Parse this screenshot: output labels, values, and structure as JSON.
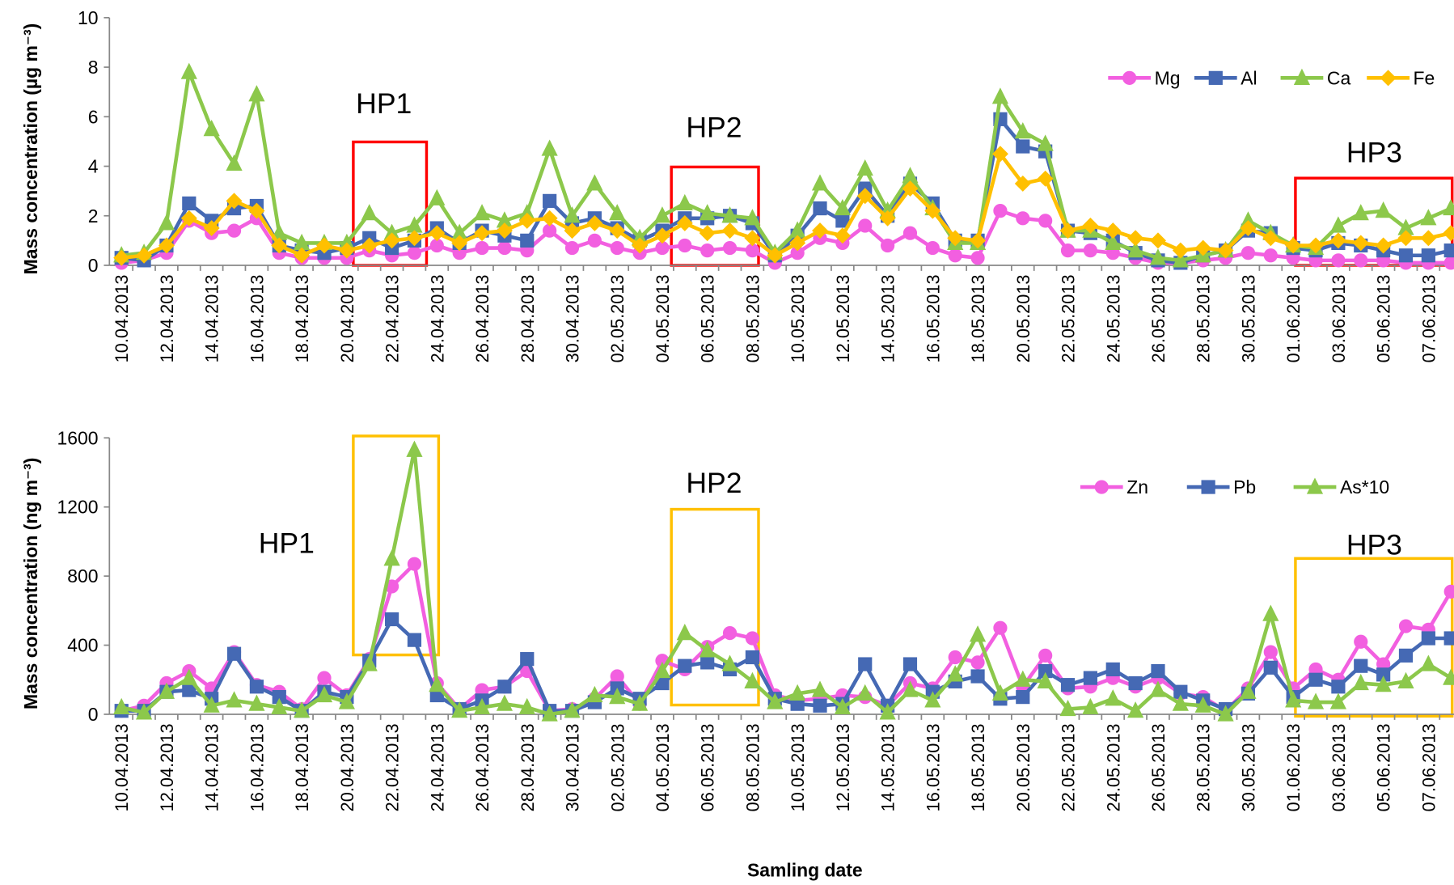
{
  "chart_data": [
    {
      "type": "line",
      "ylabel": "Mass concentration (µg m⁻³)",
      "annotations": [
        "HP1",
        "HP2",
        "HP3"
      ],
      "categories": [
        "10.04.2013",
        null,
        "12.04.2013",
        null,
        "14.04.2013",
        null,
        "16.04.2013",
        null,
        "18.04.2013",
        null,
        "20.04.2013",
        null,
        "22.04.2013",
        null,
        "24.04.2013",
        null,
        "26.04.2013",
        null,
        "28.04.2013",
        null,
        "30.04.2013",
        null,
        "02.05.2013",
        null,
        "04.05.2013",
        null,
        "06.05.2013",
        null,
        "08.05.2013",
        null,
        "10.05.2013",
        null,
        "12.05.2013",
        null,
        "14.05.2013",
        null,
        "16.05.2013",
        null,
        "18.05.2013",
        null,
        "20.05.2013",
        null,
        "22.05.2013",
        null,
        "24.05.2013",
        null,
        "26.05.2013",
        null,
        "28.05.2013",
        null,
        "30.05.2013",
        null,
        "01.06.2013",
        null,
        "03.06.2013",
        null,
        "05.06.2013",
        null,
        "07.06.2013",
        null
      ],
      "ylim": [
        0,
        10
      ],
      "yticks": [
        0,
        2,
        4,
        6,
        8,
        10
      ],
      "series": [
        {
          "name": "Mg",
          "color": "#f25fe0",
          "marker": "circle",
          "values": [
            0.1,
            0.2,
            0.5,
            1.8,
            1.3,
            1.4,
            1.9,
            0.5,
            0.3,
            0.3,
            0.3,
            0.6,
            0.4,
            0.5,
            0.8,
            0.5,
            0.7,
            0.7,
            0.6,
            1.4,
            0.7,
            1.0,
            0.7,
            0.5,
            0.7,
            0.8,
            0.6,
            0.7,
            0.6,
            0.1,
            0.5,
            1.1,
            0.9,
            1.6,
            0.8,
            1.3,
            0.7,
            0.4,
            0.3,
            2.2,
            1.9,
            1.8,
            0.6,
            0.6,
            0.5,
            0.3,
            0.1,
            0.1,
            0.2,
            0.3,
            0.5,
            0.4,
            0.3,
            0.2,
            0.2,
            0.2,
            0.2,
            0.1,
            0.1,
            0.1
          ]
        },
        {
          "name": "Al",
          "color": "#4569b4",
          "marker": "square",
          "values": [
            0.3,
            0.2,
            0.8,
            2.5,
            1.8,
            2.3,
            2.4,
            0.8,
            0.6,
            0.5,
            0.7,
            1.1,
            0.7,
            1.0,
            1.5,
            0.9,
            1.4,
            1.2,
            1.0,
            2.6,
            1.7,
            1.9,
            1.5,
            1.0,
            1.4,
            1.9,
            1.9,
            2.0,
            1.7,
            0.4,
            1.2,
            2.3,
            1.8,
            3.1,
            2.0,
            3.3,
            2.5,
            1.0,
            1.0,
            5.9,
            4.8,
            4.6,
            1.4,
            1.3,
            1.0,
            0.5,
            0.2,
            0.1,
            0.4,
            0.6,
            1.4,
            1.3,
            0.7,
            0.6,
            0.9,
            0.8,
            0.6,
            0.4,
            0.4,
            0.6
          ]
        },
        {
          "name": "Ca",
          "color": "#8cc84b",
          "marker": "triangle",
          "values": [
            0.4,
            0.5,
            1.7,
            7.8,
            5.5,
            4.1,
            6.9,
            1.3,
            0.9,
            0.9,
            0.9,
            2.1,
            1.3,
            1.6,
            2.7,
            1.3,
            2.1,
            1.8,
            2.1,
            4.7,
            2.0,
            3.3,
            2.1,
            1.1,
            2.0,
            2.5,
            2.1,
            2.0,
            1.9,
            0.5,
            1.4,
            3.3,
            2.3,
            3.9,
            2.2,
            3.6,
            2.3,
            0.9,
            0.9,
            6.8,
            5.4,
            4.9,
            1.4,
            1.4,
            0.9,
            0.6,
            0.3,
            0.2,
            0.4,
            0.6,
            1.8,
            1.3,
            0.8,
            0.7,
            1.6,
            2.1,
            2.2,
            1.5,
            1.9,
            2.3
          ]
        },
        {
          "name": "Fe",
          "color": "#ffc000",
          "marker": "diamond",
          "values": [
            0.3,
            0.4,
            0.8,
            1.9,
            1.5,
            2.6,
            2.2,
            0.8,
            0.4,
            0.8,
            0.6,
            0.8,
            1.0,
            1.1,
            1.3,
            0.9,
            1.3,
            1.4,
            1.8,
            1.9,
            1.4,
            1.7,
            1.4,
            0.8,
            1.2,
            1.7,
            1.3,
            1.4,
            1.1,
            0.4,
            0.9,
            1.4,
            1.2,
            2.8,
            1.9,
            3.1,
            2.2,
            1.1,
            1.0,
            4.5,
            3.3,
            3.5,
            1.4,
            1.6,
            1.4,
            1.1,
            1.0,
            0.6,
            0.7,
            0.6,
            1.5,
            1.1,
            0.8,
            0.8,
            1.0,
            0.9,
            0.8,
            1.1,
            1.1,
            1.3
          ]
        }
      ]
    },
    {
      "type": "line",
      "ylabel": "Mass concentration (ng m⁻³)",
      "xlabel": "Samling date",
      "annotations": [
        "HP1",
        "HP2",
        "HP3"
      ],
      "categories": [
        "10.04.2013",
        null,
        "12.04.2013",
        null,
        "14.04.2013",
        null,
        "16.04.2013",
        null,
        "18.04.2013",
        null,
        "20.04.2013",
        null,
        "22.04.2013",
        null,
        "24.04.2013",
        null,
        "26.04.2013",
        null,
        "28.04.2013",
        null,
        "30.04.2013",
        null,
        "02.05.2013",
        null,
        "04.05.2013",
        null,
        "06.05.2013",
        null,
        "08.05.2013",
        null,
        "10.05.2013",
        null,
        "12.05.2013",
        null,
        "14.05.2013",
        null,
        "16.05.2013",
        null,
        "18.05.2013",
        null,
        "20.05.2013",
        null,
        "22.05.2013",
        null,
        "24.05.2013",
        null,
        "26.05.2013",
        null,
        "28.05.2013",
        null,
        "30.05.2013",
        null,
        "01.06.2013",
        null,
        "03.06.2013",
        null,
        "05.06.2013",
        null,
        "07.06.2013",
        null
      ],
      "ylim": [
        0,
        1600
      ],
      "yticks": [
        0,
        400,
        800,
        1200,
        1600
      ],
      "series": [
        {
          "name": "Zn",
          "color": "#f25fe0",
          "marker": "circle",
          "values": [
            20,
            50,
            180,
            250,
            150,
            360,
            170,
            130,
            30,
            210,
            110,
            320,
            740,
            870,
            180,
            30,
            140,
            160,
            250,
            20,
            30,
            90,
            220,
            60,
            310,
            260,
            390,
            470,
            440,
            110,
            80,
            90,
            110,
            100,
            50,
            180,
            150,
            330,
            300,
            500,
            160,
            340,
            150,
            160,
            210,
            160,
            210,
            120,
            100,
            20,
            150,
            360,
            150,
            260,
            200,
            420,
            290,
            510,
            490,
            710
          ]
        },
        {
          "name": "Pb",
          "color": "#4569b4",
          "marker": "square",
          "values": [
            20,
            20,
            130,
            140,
            90,
            350,
            160,
            100,
            20,
            130,
            100,
            310,
            550,
            430,
            110,
            30,
            80,
            160,
            320,
            20,
            20,
            70,
            150,
            90,
            180,
            280,
            300,
            260,
            330,
            90,
            60,
            50,
            60,
            290,
            50,
            290,
            130,
            190,
            220,
            90,
            100,
            250,
            170,
            210,
            260,
            180,
            250,
            130,
            80,
            30,
            120,
            270,
            100,
            200,
            160,
            280,
            230,
            340,
            440,
            440
          ]
        },
        {
          "name": "As*10",
          "color": "#8cc84b",
          "marker": "triangle",
          "values": [
            40,
            10,
            130,
            210,
            50,
            80,
            60,
            40,
            20,
            110,
            70,
            290,
            900,
            1530,
            170,
            20,
            40,
            60,
            40,
            0,
            20,
            110,
            100,
            60,
            250,
            470,
            370,
            290,
            190,
            70,
            120,
            140,
            40,
            120,
            10,
            140,
            80,
            230,
            460,
            120,
            200,
            190,
            30,
            40,
            90,
            20,
            140,
            60,
            50,
            0,
            130,
            580,
            80,
            70,
            70,
            180,
            170,
            190,
            290,
            210
          ]
        }
      ]
    }
  ]
}
